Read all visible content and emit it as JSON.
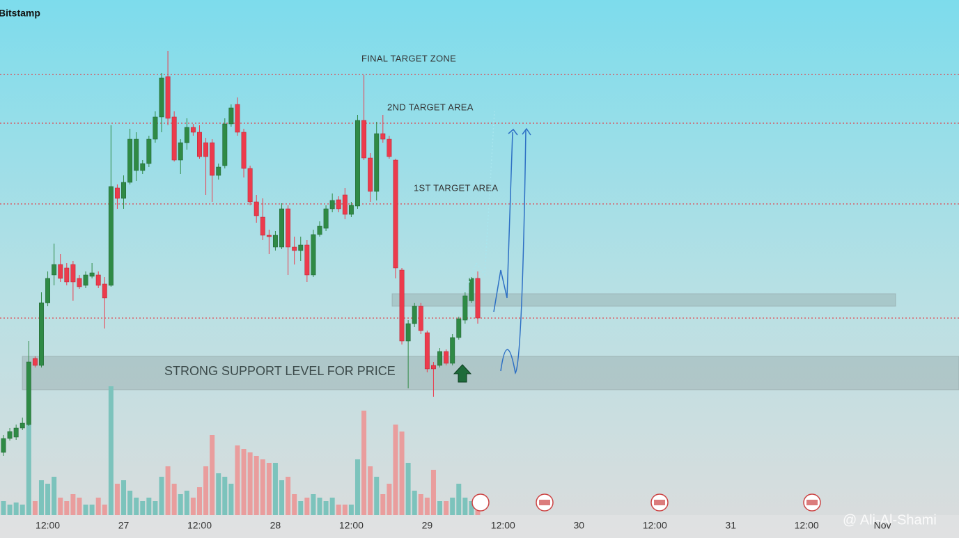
{
  "chart_data": {
    "type": "candlestick",
    "source": "Bitstamp",
    "watermark": "@ Ali-Al-Shami",
    "time_labels": [
      "12:00",
      "27",
      "12:00",
      "28",
      "12:00",
      "29",
      "12:00",
      "30",
      "12:00",
      "31",
      "12:00",
      "Nov"
    ],
    "open": [
      50,
      70,
      72,
      85,
      90,
      185,
      175,
      265,
      305,
      320,
      315,
      320,
      300,
      290,
      303,
      305,
      292,
      290,
      430,
      415,
      438,
      455,
      455,
      465,
      500,
      532,
      590,
      532,
      470,
      495,
      517,
      510,
      495,
      495,
      448,
      462,
      522,
      550,
      510,
      458,
      410,
      388,
      362,
      345,
      345,
      400,
      345,
      340,
      348,
      305,
      363,
      372,
      400,
      413,
      420,
      392,
      404,
      527,
      473,
      425,
      508,
      500,
      470,
      312,
      210,
      235,
      260,
      222,
      175,
      175,
      195,
      178,
      215,
      240,
      268,
      300
    ],
    "high": [
      75,
      85,
      90,
      100,
      210,
      188,
      280,
      310,
      350,
      335,
      322,
      325,
      305,
      310,
      322,
      310,
      302,
      520,
      435,
      448,
      515,
      510,
      470,
      505,
      540,
      595,
      627,
      540,
      500,
      530,
      522,
      520,
      502,
      500,
      465,
      530,
      550,
      560,
      515,
      462,
      420,
      415,
      370,
      368,
      408,
      405,
      360,
      360,
      355,
      370,
      382,
      405,
      422,
      418,
      430,
      410,
      535,
      592,
      480,
      525,
      535,
      505,
      472,
      315,
      240,
      265,
      265,
      225,
      180,
      200,
      198,
      220,
      245,
      280,
      302,
      310
    ],
    "low": [
      45,
      67,
      68,
      82,
      88,
      172,
      172,
      260,
      290,
      295,
      290,
      268,
      285,
      286,
      300,
      286,
      228,
      288,
      400,
      400,
      435,
      440,
      450,
      460,
      495,
      510,
      520,
      468,
      450,
      485,
      505,
      472,
      420,
      410,
      442,
      458,
      518,
      505,
      445,
      405,
      380,
      355,
      335,
      340,
      342,
      305,
      320,
      325,
      295,
      302,
      360,
      368,
      395,
      395,
      385,
      388,
      400,
      470,
      410,
      412,
      495,
      472,
      300,
      205,
      142,
      230,
      220,
      165,
      130,
      172,
      175,
      175,
      212,
      235,
      265,
      235
    ],
    "close": [
      70,
      80,
      85,
      92,
      180,
      175,
      265,
      300,
      320,
      300,
      295,
      295,
      288,
      305,
      308,
      290,
      272,
      432,
      415,
      438,
      500,
      500,
      465,
      500,
      532,
      588,
      530,
      470,
      495,
      517,
      510,
      475,
      475,
      448,
      460,
      522,
      545,
      510,
      458,
      410,
      390,
      362,
      360,
      362,
      400,
      345,
      340,
      348,
      305,
      363,
      375,
      400,
      412,
      400,
      392,
      405,
      527,
      473,
      425,
      508,
      500,
      475,
      315,
      210,
      235,
      260,
      225,
      170,
      170,
      195,
      178,
      215,
      242,
      275,
      300,
      243
    ],
    "volume": [
      20,
      15,
      18,
      15,
      130,
      20,
      50,
      45,
      55,
      25,
      20,
      30,
      25,
      15,
      15,
      25,
      15,
      185,
      45,
      50,
      35,
      25,
      20,
      25,
      20,
      55,
      70,
      45,
      30,
      35,
      25,
      40,
      70,
      115,
      60,
      55,
      45,
      100,
      95,
      90,
      85,
      80,
      75,
      75,
      50,
      55,
      30,
      20,
      25,
      30,
      25,
      20,
      25,
      15,
      15,
      15,
      80,
      150,
      70,
      55,
      30,
      45,
      130,
      120,
      75,
      35,
      30,
      25,
      65,
      20,
      20,
      25,
      45,
      25,
      20,
      15
    ],
    "ylim": [
      0,
      700
    ],
    "vlim": [
      0,
      200
    ],
    "up_color": "#2f8a45",
    "down_color": "#ec3b4c",
    "up_volume_color": "#7cc3bc",
    "down_volume_color": "#e99d9d",
    "levels": [
      593,
      523,
      407,
      243
    ],
    "level_color": "#e0454f",
    "level_labels": [
      "FINAL TARGET ZONE",
      "2ND TARGET AREA",
      "1ST TARGET AREA"
    ],
    "zones": [
      [
        260,
        278
      ],
      [
        140,
        188
      ]
    ],
    "zone_label": "STRONG SUPPORT LEVEL FOR PRICE"
  }
}
